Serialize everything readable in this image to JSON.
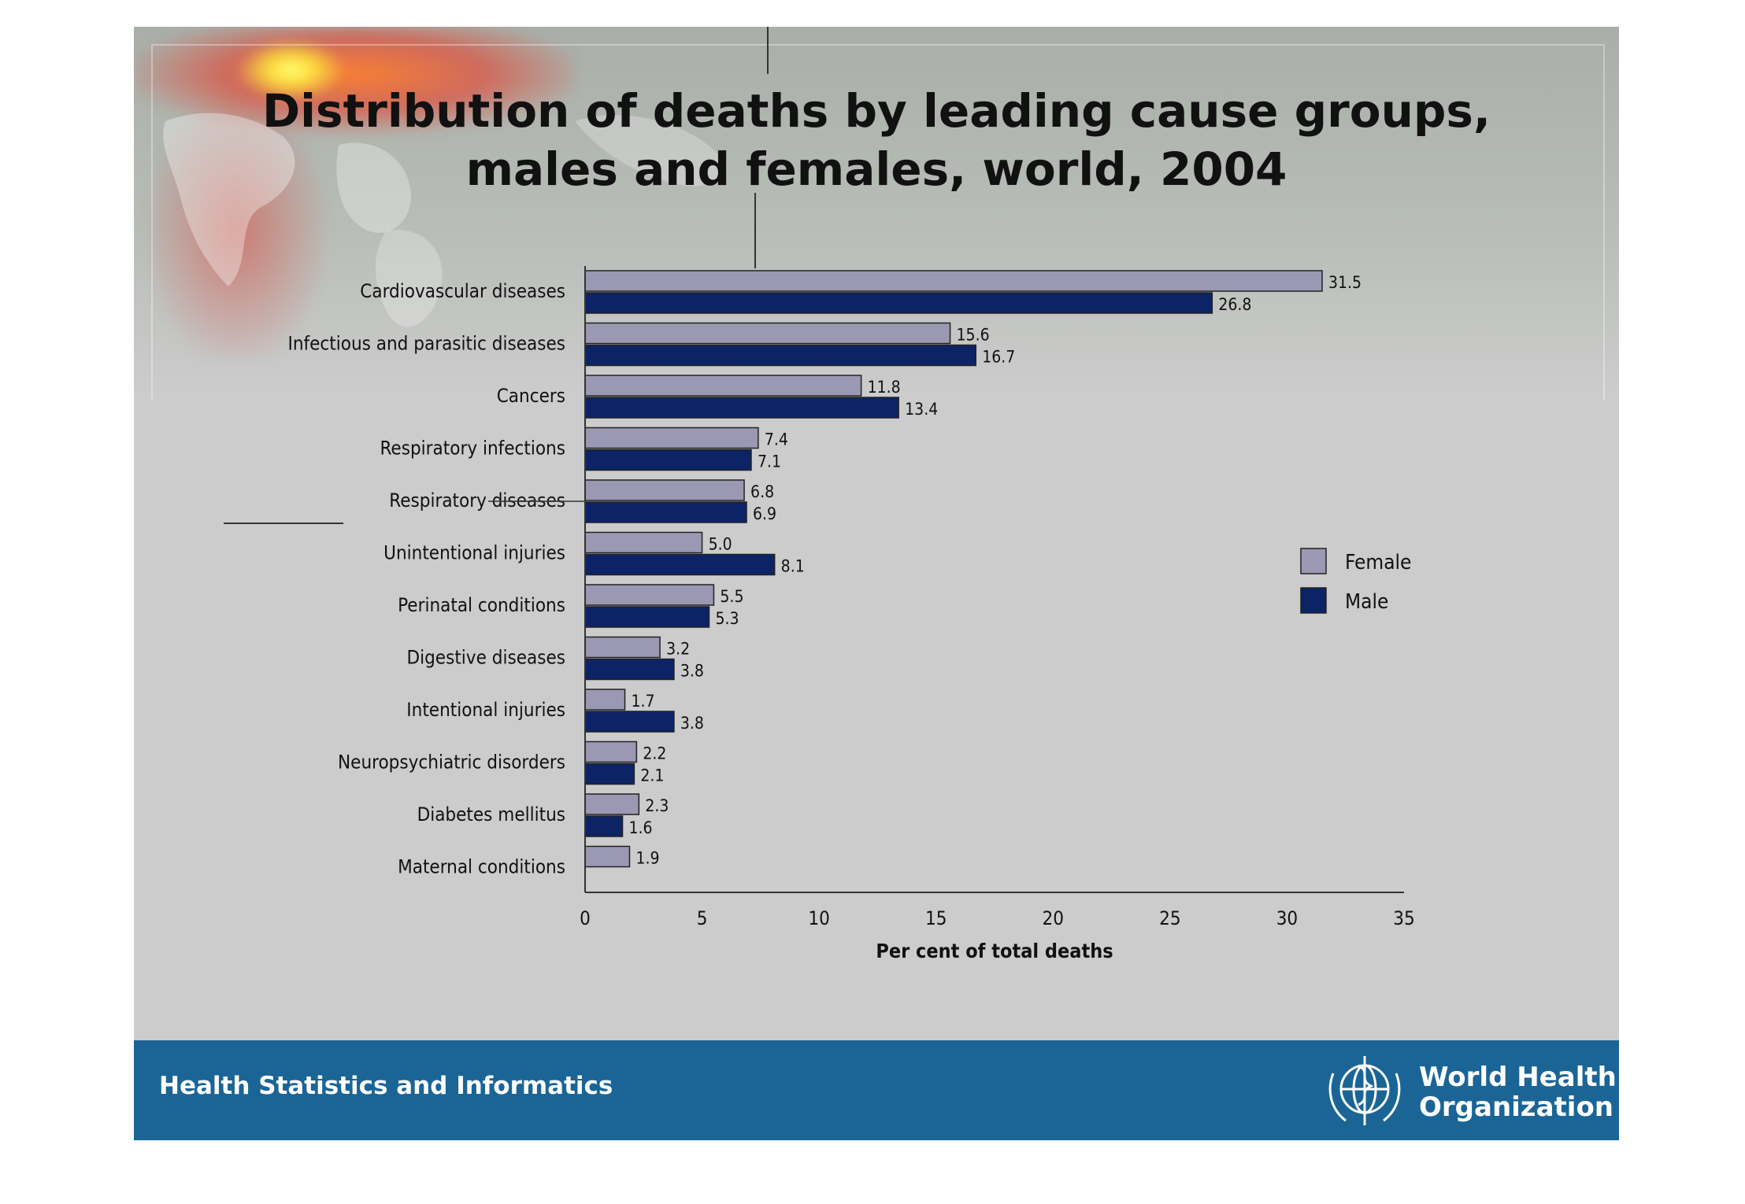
{
  "title": {
    "line1": "Distribution of deaths by leading cause groups,",
    "line2": "males and females, world, 2004"
  },
  "footer": {
    "left_text": "Health Statistics and Informatics",
    "org_line1": "World Health",
    "org_line2": "Organization",
    "logo_icon": "who-emblem-icon"
  },
  "colors": {
    "female": "#9b98b3",
    "male": "#0c2466",
    "footer_band": "#1a6596"
  },
  "chart_data": {
    "type": "bar",
    "orientation": "horizontal",
    "categories": [
      "Cardiovascular diseases",
      "Infectious and parasitic diseases",
      "Cancers",
      "Respiratory infections",
      "Respiratory diseases",
      "Unintentional injuries",
      "Perinatal conditions",
      "Digestive diseases",
      "Intentional injuries",
      "Neuropsychiatric disorders",
      "Diabetes mellitus",
      "Maternal conditions"
    ],
    "series": [
      {
        "name": "Female",
        "values": [
          31.5,
          15.6,
          11.8,
          7.4,
          6.8,
          5.0,
          5.5,
          3.2,
          1.7,
          2.2,
          2.3,
          1.9
        ],
        "labels": [
          "31.5",
          "15.6",
          "11.8",
          "7.4",
          "6.8",
          "5.0",
          "5.5",
          "3.2",
          "1.7",
          "2.2",
          "2.3",
          "1.9"
        ]
      },
      {
        "name": "Male",
        "values": [
          26.8,
          16.7,
          13.4,
          7.1,
          6.9,
          8.1,
          5.3,
          3.8,
          3.8,
          2.1,
          1.6,
          null
        ],
        "labels": [
          "26.8",
          "16.7",
          "13.4",
          "7.1",
          "6.9",
          "8.1",
          "5.3",
          "3.8",
          "3.8",
          "2.1",
          "1.6",
          ""
        ]
      }
    ],
    "xlabel": "Per cent of total deaths",
    "ylabel": "",
    "xlim": [
      0,
      35
    ],
    "xticks": [
      "0",
      "5",
      "10",
      "15",
      "20",
      "25",
      "30",
      "35"
    ],
    "grid": false,
    "legend": "right"
  }
}
